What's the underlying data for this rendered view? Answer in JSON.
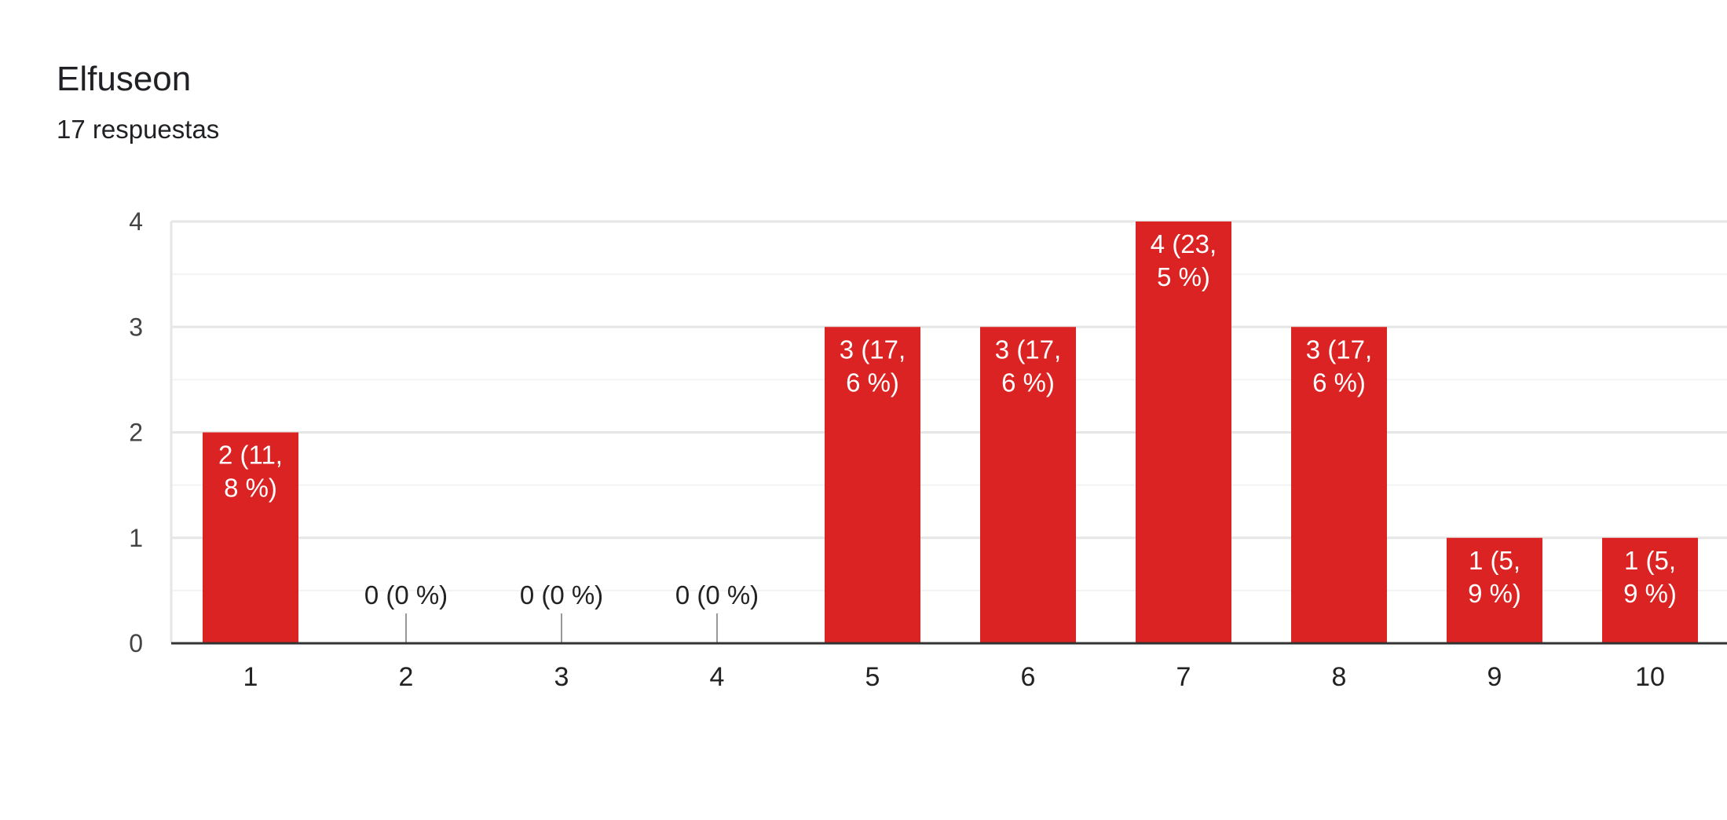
{
  "header": {
    "title": "Elfuseon",
    "subtitle": "17 respuestas"
  },
  "colors": {
    "bar": "#dc2323",
    "grid_major": "#e6e6e6",
    "grid_minor": "#f3f3f3",
    "axis": "#333333",
    "zero_tick": "#999999",
    "label_inside": "#ffffff",
    "label_outside": "#222222"
  },
  "chart_data": {
    "type": "bar",
    "title": "Elfuseon",
    "subtitle": "17 respuestas",
    "xlabel": "",
    "ylabel": "",
    "categories": [
      "1",
      "2",
      "3",
      "4",
      "5",
      "6",
      "7",
      "8",
      "9",
      "10"
    ],
    "values": [
      2,
      0,
      0,
      0,
      3,
      3,
      4,
      3,
      1,
      1
    ],
    "data_labels": [
      [
        "2 (11,",
        "8 %)"
      ],
      [
        "0 (0 %)"
      ],
      [
        "0 (0 %)"
      ],
      [
        "0 (0 %)"
      ],
      [
        "3 (17,",
        "6 %)"
      ],
      [
        "3 (17,",
        "6 %)"
      ],
      [
        "4 (23,",
        "5 %)"
      ],
      [
        "3 (17,",
        "6 %)"
      ],
      [
        "1 (5,",
        "9 %)"
      ],
      [
        "1 (5,",
        "9 %)"
      ]
    ],
    "ylim": [
      0,
      4
    ],
    "yticks": [
      0,
      1,
      2,
      3,
      4
    ],
    "grid": true
  }
}
